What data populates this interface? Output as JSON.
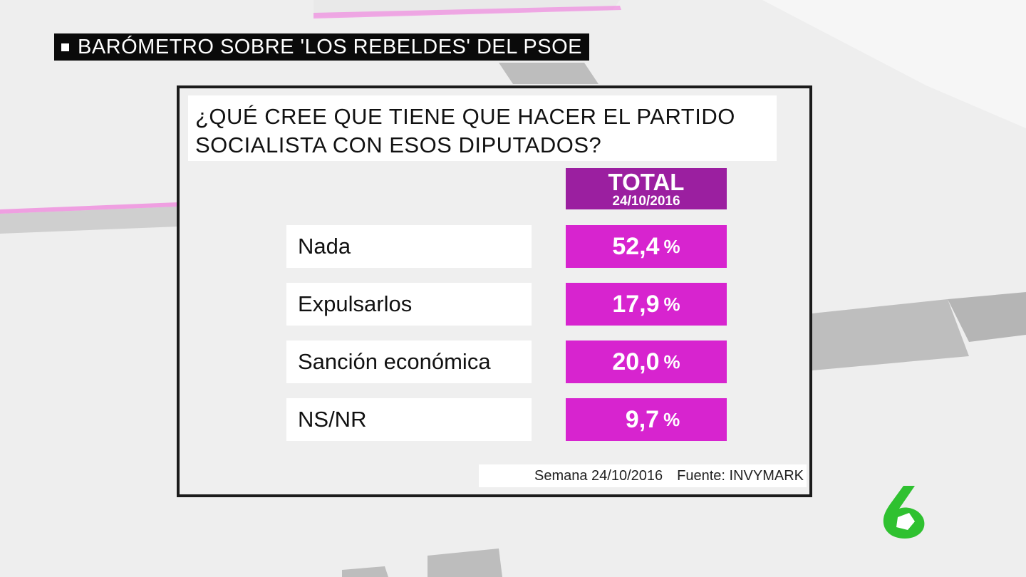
{
  "headline": "BARÓMETRO SOBRE 'LOS REBELDES' DEL PSOE",
  "question": {
    "line1": "¿QUÉ CREE QUE TIENE QUE HACER EL PARTIDO",
    "line2": "SOCIALISTA CON ESOS DIPUTADOS?"
  },
  "column_header": {
    "label": "TOTAL",
    "date": "24/10/2016"
  },
  "chart_data": {
    "type": "table",
    "title": "¿QUÉ CREE QUE TIENE QUE HACER EL PARTIDO SOCIALISTA CON ESOS DIPUTADOS?",
    "columns": [
      "TOTAL 24/10/2016"
    ],
    "rows": [
      {
        "label": "Nada",
        "value": 52.4,
        "display": "52,4"
      },
      {
        "label": "Expulsarlos",
        "value": 17.9,
        "display": "17,9"
      },
      {
        "label": "Sanción económica",
        "value": 20.0,
        "display": "20,0"
      },
      {
        "label": "NS/NR",
        "value": 9.7,
        "display": "9,7"
      }
    ],
    "unit": "%"
  },
  "footer": {
    "week": "Semana 24/10/2016",
    "source": "Fuente: INVYMARK"
  },
  "colors": {
    "header_bg": "#9b1fa0",
    "value_bg": "#d724cf",
    "logo_green": "#2fc130"
  },
  "logo_icon": "laSexta-logo-icon"
}
